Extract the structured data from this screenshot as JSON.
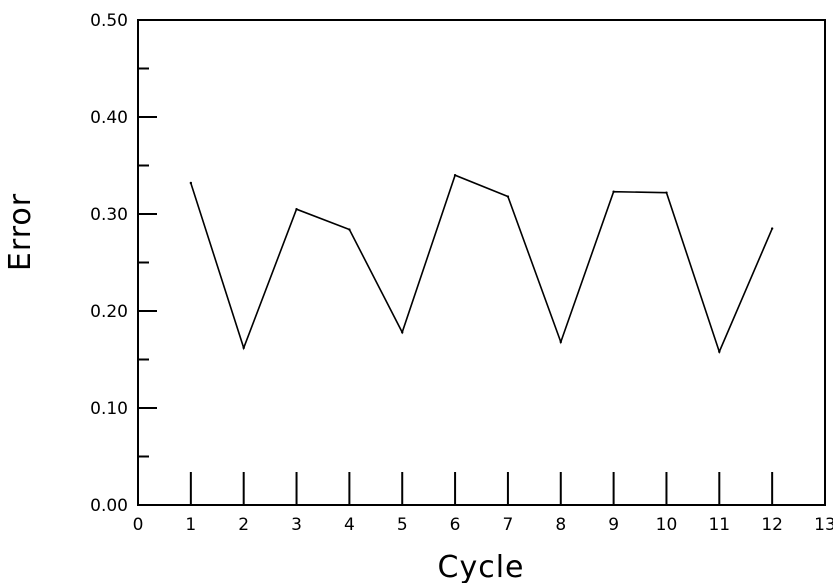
{
  "chart_data": {
    "type": "line",
    "title": "",
    "xlabel": "Cycle",
    "ylabel": "Error",
    "xlim": [
      0,
      13
    ],
    "ylim": [
      0.0,
      0.5
    ],
    "x_ticks": [
      0,
      1,
      2,
      3,
      4,
      5,
      6,
      7,
      8,
      9,
      10,
      11,
      12,
      13
    ],
    "x_tick_labels": [
      "0",
      "1",
      "2",
      "3",
      "4",
      "5",
      "6",
      "7",
      "8",
      "9",
      "10",
      "11",
      "12",
      "13"
    ],
    "y_major_ticks": [
      0.0,
      0.1,
      0.2,
      0.3,
      0.4,
      0.5
    ],
    "y_tick_labels": [
      "0.00",
      "0.10",
      "0.20",
      "0.30",
      "0.40",
      "0.50"
    ],
    "grid": false,
    "series": [
      {
        "x": [
          1,
          2,
          3,
          4,
          5,
          6,
          7,
          8,
          9,
          10,
          11,
          12
        ],
        "values": [
          0.332,
          0.162,
          0.305,
          0.284,
          0.178,
          0.34,
          0.318,
          0.168,
          0.323,
          0.322,
          0.158,
          0.285
        ]
      }
    ]
  }
}
